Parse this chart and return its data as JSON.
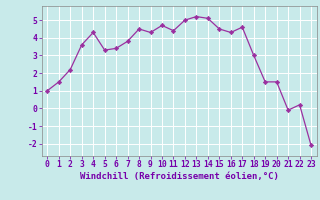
{
  "x": [
    0,
    1,
    2,
    3,
    4,
    5,
    6,
    7,
    8,
    9,
    10,
    11,
    12,
    13,
    14,
    15,
    16,
    17,
    18,
    19,
    20,
    21,
    22,
    23
  ],
  "y": [
    1.0,
    1.5,
    2.2,
    3.6,
    4.3,
    3.3,
    3.4,
    3.8,
    4.5,
    4.3,
    4.7,
    4.4,
    5.0,
    5.2,
    5.1,
    4.5,
    4.3,
    4.6,
    3.0,
    1.5,
    1.5,
    -0.1,
    0.2,
    -2.1
  ],
  "line_color": "#9b30a0",
  "marker": "D",
  "marker_size": 2.2,
  "bg_color": "#c8eaea",
  "grid_color": "#b0d8d8",
  "xlabel": "Windchill (Refroidissement éolien,°C)",
  "xlim": [
    -0.5,
    23.5
  ],
  "ylim": [
    -2.7,
    5.8
  ],
  "xticks": [
    0,
    1,
    2,
    3,
    4,
    5,
    6,
    7,
    8,
    9,
    10,
    11,
    12,
    13,
    14,
    15,
    16,
    17,
    18,
    19,
    20,
    21,
    22,
    23
  ],
  "yticks": [
    -2,
    -1,
    0,
    1,
    2,
    3,
    4,
    5
  ],
  "tick_fontsize": 5.8,
  "label_fontsize": 6.5,
  "line_width": 0.9
}
